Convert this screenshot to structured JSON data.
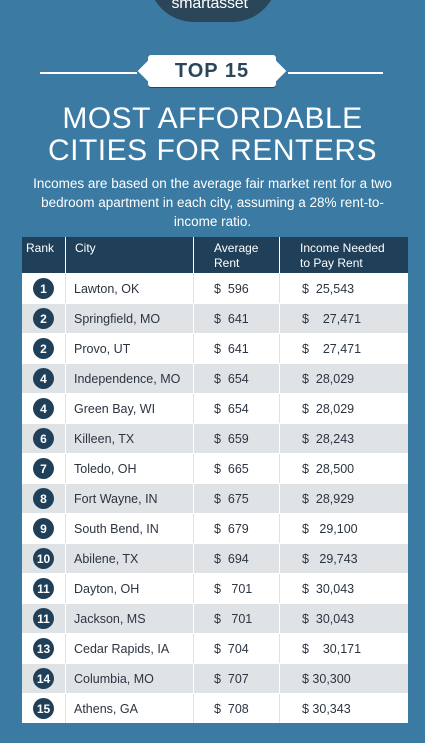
{
  "brand": {
    "name": "smartasset",
    "mark": "™"
  },
  "badge": "TOP 15",
  "title_line1": "MOST AFFORDABLE",
  "title_line2": "CITIES FOR RENTERS",
  "subtitle": "Incomes are based on the average fair market rent for a two bedroom apartment in each city, assuming a 28% rent-to-income ratio.",
  "colors": {
    "background": "#3a7aa3",
    "header": "#20405a",
    "row_alt": "#e0e3e6"
  },
  "chart_data": {
    "type": "table",
    "columns": [
      "Rank",
      "City",
      "Average Rent",
      "Income Needed to Pay Rent"
    ],
    "column_lines": [
      [
        "Rank"
      ],
      [
        "City"
      ],
      [
        "Average",
        "Rent"
      ],
      [
        "Income Needed",
        "to Pay Rent"
      ]
    ],
    "rows": [
      {
        "rank": "1",
        "city": "Lawton, OK",
        "rent": "$  596",
        "income": "$  25,543"
      },
      {
        "rank": "2",
        "city": "Springfield, MO",
        "rent": "$  641",
        "income": "$    27,471"
      },
      {
        "rank": "2",
        "city": "Provo, UT",
        "rent": "$  641",
        "income": "$    27,471"
      },
      {
        "rank": "4",
        "city": "Independence, MO",
        "rent": "$  654",
        "income": "$  28,029"
      },
      {
        "rank": "4",
        "city": "Green Bay, WI",
        "rent": "$  654",
        "income": "$  28,029"
      },
      {
        "rank": "6",
        "city": "Killeen, TX",
        "rent": "$  659",
        "income": "$  28,243"
      },
      {
        "rank": "7",
        "city": "Toledo, OH",
        "rent": "$  665",
        "income": "$  28,500"
      },
      {
        "rank": "8",
        "city": "Fort Wayne, IN",
        "rent": "$  675",
        "income": "$  28,929"
      },
      {
        "rank": "9",
        "city": "South Bend, IN",
        "rent": "$  679",
        "income": "$   29,100"
      },
      {
        "rank": "10",
        "city": "Abilene, TX",
        "rent": "$  694",
        "income": "$   29,743"
      },
      {
        "rank": "11",
        "city": "Dayton, OH",
        "rent": "$   701",
        "income": "$  30,043"
      },
      {
        "rank": "11",
        "city": "Jackson, MS",
        "rent": "$   701",
        "income": "$  30,043"
      },
      {
        "rank": "13",
        "city": "Cedar Rapids, IA",
        "rent": "$  704",
        "income": "$    30,171"
      },
      {
        "rank": "14",
        "city": "Columbia, MO",
        "rent": "$  707",
        "income": "$ 30,300"
      },
      {
        "rank": "15",
        "city": "Athens, GA",
        "rent": "$  708",
        "income": "$ 30,343"
      }
    ]
  }
}
